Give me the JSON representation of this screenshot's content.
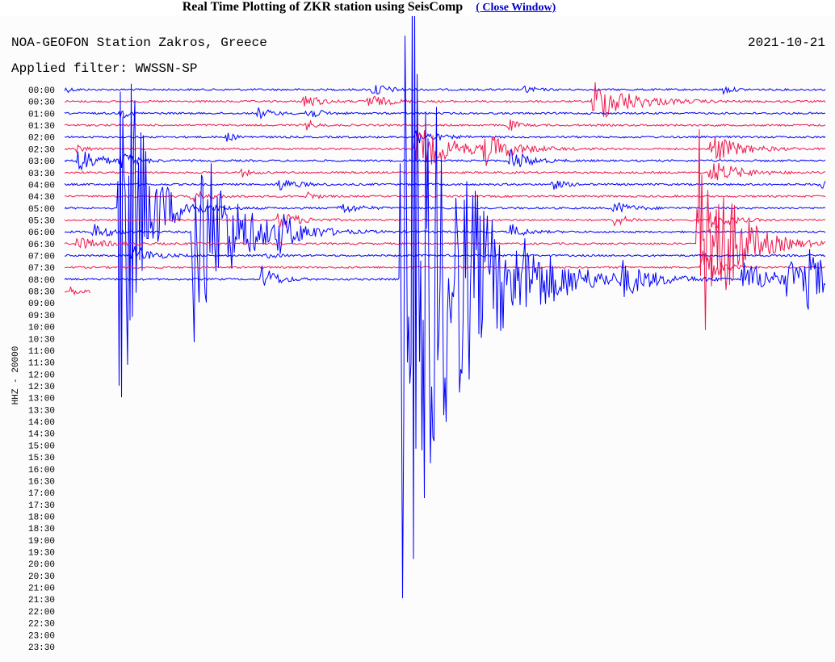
{
  "header": {
    "title": "Real Time Plotting of ZKR station using SeisComp",
    "link": "( Close Window)"
  },
  "plot": {
    "station": "NOA-GEOFON Station Zakros, Greece",
    "date": "2021-10-21",
    "filter": "Applied filter: WWSSN-SP",
    "channel": "HHZ - 20000",
    "times": [
      "00:00",
      "00:30",
      "01:00",
      "01:30",
      "02:00",
      "02:30",
      "03:00",
      "03:30",
      "04:00",
      "04:30",
      "05:00",
      "05:30",
      "06:00",
      "06:30",
      "07:00",
      "07:30",
      "08:00",
      "08:30",
      "09:00",
      "09:30",
      "10:00",
      "10:30",
      "11:00",
      "11:30",
      "12:00",
      "12:30",
      "13:00",
      "13:30",
      "14:00",
      "14:30",
      "15:00",
      "15:30",
      "16:00",
      "16:30",
      "17:00",
      "17:30",
      "18:00",
      "18:30",
      "19:00",
      "19:30",
      "20:00",
      "20:30",
      "21:00",
      "21:30",
      "22:00",
      "22:30",
      "23:00",
      "23:30"
    ]
  }
}
